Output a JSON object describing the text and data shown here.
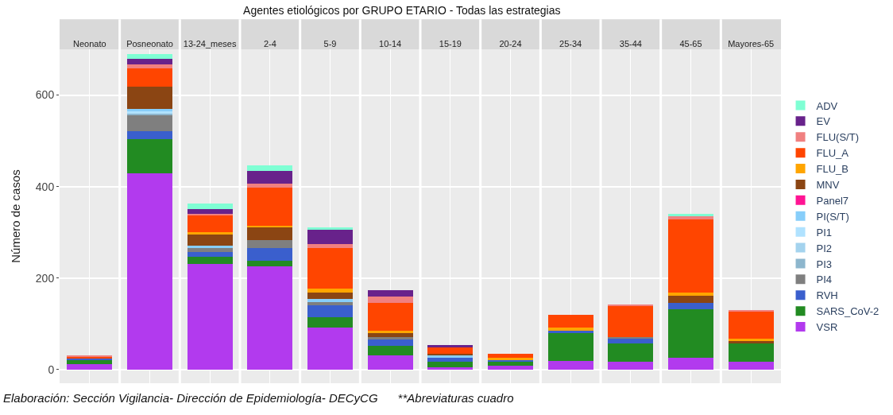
{
  "chart_data": {
    "type": "bar",
    "stacked": true,
    "title": "Agentes etiológicos por GRUPO ETARIO - Todas las estrategias",
    "ylabel": "Número de casos",
    "categories": [
      "Neonato",
      "Posneonato",
      "13-24_meses",
      "2-4",
      "5-9",
      "10-14",
      "15-19",
      "20-24",
      "25-34",
      "35-44",
      "45-65",
      "Mayores-65"
    ],
    "series": [
      {
        "name": "VSR",
        "color": "#b23aee",
        "values": [
          12,
          429,
          230,
          225,
          92,
          30,
          4,
          9,
          18,
          17,
          25,
          17
        ]
      },
      {
        "name": "SARS_CoV-2",
        "color": "#228b22",
        "values": [
          8,
          74,
          17,
          12,
          22,
          22,
          13,
          9,
          61,
          40,
          107,
          40
        ]
      },
      {
        "name": "RVH",
        "color": "#3a5fcd",
        "values": [
          4,
          18,
          10,
          28,
          27,
          15,
          9,
          3,
          6,
          11,
          14,
          0
        ]
      },
      {
        "name": "PI4",
        "color": "#7f7f7f",
        "values": [
          0,
          34,
          8,
          18,
          7,
          3,
          0,
          0,
          0,
          3,
          0,
          0
        ]
      },
      {
        "name": "PI3",
        "color": "#8db6cd",
        "values": [
          0,
          4,
          0,
          0,
          0,
          0,
          0,
          0,
          0,
          0,
          0,
          0
        ]
      },
      {
        "name": "PI2",
        "color": "#a4d3ee",
        "values": [
          0,
          0,
          0,
          0,
          0,
          0,
          0,
          0,
          0,
          0,
          0,
          0
        ]
      },
      {
        "name": "PI1",
        "color": "#b0e2ff",
        "values": [
          0,
          5,
          0,
          0,
          0,
          0,
          0,
          0,
          0,
          0,
          0,
          0
        ]
      },
      {
        "name": "PI(S/T)",
        "color": "#87cefa",
        "values": [
          0,
          5,
          5,
          0,
          6,
          0,
          5,
          0,
          0,
          0,
          0,
          0
        ]
      },
      {
        "name": "Panel7",
        "color": "#ff1493",
        "values": [
          0,
          0,
          0,
          0,
          0,
          0,
          0,
          0,
          0,
          0,
          0,
          0
        ]
      },
      {
        "name": "MNV",
        "color": "#8b4513",
        "values": [
          0,
          49,
          25,
          27,
          14,
          9,
          3,
          0,
          0,
          0,
          16,
          5
        ]
      },
      {
        "name": "FLU_B",
        "color": "#ffa500",
        "values": [
          0,
          0,
          5,
          5,
          9,
          5,
          0,
          5,
          7,
          0,
          6,
          5
        ]
      },
      {
        "name": "FLU_A",
        "color": "#ff4500",
        "values": [
          4,
          40,
          37,
          83,
          88,
          62,
          15,
          9,
          27,
          67,
          160,
          59
        ]
      },
      {
        "name": "FLU(S/T)",
        "color": "#f08080",
        "values": [
          2,
          9,
          4,
          9,
          10,
          14,
          0,
          0,
          0,
          4,
          7,
          4
        ]
      },
      {
        "name": "EV",
        "color": "#68228b",
        "values": [
          0,
          12,
          9,
          27,
          30,
          13,
          5,
          0,
          0,
          0,
          0,
          0
        ]
      },
      {
        "name": "ADV",
        "color": "#7fffd4",
        "values": [
          0,
          10,
          12,
          13,
          5,
          0,
          0,
          0,
          0,
          0,
          5,
          0
        ]
      }
    ],
    "ylim": [
      -30,
      700
    ],
    "yticks": [
      0,
      200,
      400,
      600
    ],
    "grid": true,
    "legend": "right",
    "annotations": [
      "Elaboración: Sección Vigilancia- Dirección de Epidemiología- DECyCG      **Abreviaturas cuadro"
    ]
  }
}
